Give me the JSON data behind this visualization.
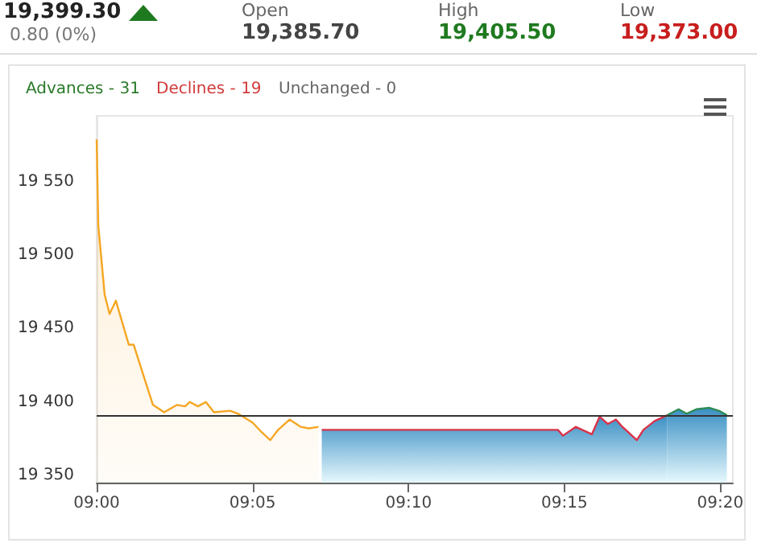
{
  "chart_data": {
    "type": "area",
    "title": "19,399.30",
    "subtitle": "0.80 (0%)",
    "annotations": [
      "Open",
      "19,385.70",
      "High",
      "19,405.50",
      "Low",
      "19,373.00",
      "Advances - 31",
      "Declines - 19",
      "Unchanged - 0"
    ],
    "series": [
      {
        "color": "#f5a623",
        "x": [
          9.0,
          9.0009,
          9.0043,
          9.0069,
          9.0103,
          9.0172,
          9.0198,
          9.0258,
          9.0301,
          9.0361,
          9.043,
          9.0473,
          9.0498,
          9.0541,
          9.0584,
          9.0627,
          9.0713,
          9.0756,
          9.0833,
          9.0885,
          9.0928,
          9.097,
          9.1031,
          9.1091,
          9.1134,
          9.1186
        ],
        "values": [
          19579,
          19520,
          19473,
          19460,
          19469,
          19439,
          19439,
          19415,
          19398,
          19393,
          19398,
          19397,
          19400,
          19397,
          19400,
          19393,
          19394,
          19392,
          19386,
          19379,
          19374,
          19381,
          19388,
          19383,
          19382,
          19383
        ]
      },
      {
        "color": "#d9334a",
        "x": [
          9.1203,
          9.2465,
          9.2492,
          9.256,
          9.2647,
          9.2688,
          9.2732,
          9.2775,
          9.281,
          9.2887,
          9.2922,
          9.2982,
          9.305
        ],
        "values": [
          19381,
          19381,
          19377,
          19383,
          19378,
          19390,
          19385,
          19388,
          19383,
          19374,
          19381,
          19387,
          19391
        ]
      },
      {
        "color": "#2e8b57",
        "x": [
          9.305,
          9.311,
          9.3153,
          9.3205,
          9.3273,
          9.3325,
          9.3368
        ],
        "values": [
          19391,
          19395,
          19392,
          19395,
          19396,
          19394,
          19391
        ]
      }
    ],
    "xlim": [
      9.0,
      9.34
    ],
    "xticks": [
      {
        "value": 9.0,
        "label": "09:00"
      },
      {
        "value": 9.0833,
        "label": "09:05"
      },
      {
        "value": 9.1667,
        "label": "09:10"
      },
      {
        "value": 9.25,
        "label": "09:15"
      },
      {
        "value": 9.3333,
        "label": "09:20"
      }
    ],
    "ylim": [
      19345,
      19595
    ],
    "yticks": [
      {
        "value": 19350,
        "label": "19 350"
      },
      {
        "value": 19400,
        "label": "19 400"
      },
      {
        "value": 19450,
        "label": "19 450"
      },
      {
        "value": 19500,
        "label": "19 500"
      },
      {
        "value": 19550,
        "label": "19 550"
      }
    ],
    "ref_lines": [
      {
        "axis": "y",
        "value": 19391,
        "color": "#333333"
      }
    ],
    "grid": false
  }
}
